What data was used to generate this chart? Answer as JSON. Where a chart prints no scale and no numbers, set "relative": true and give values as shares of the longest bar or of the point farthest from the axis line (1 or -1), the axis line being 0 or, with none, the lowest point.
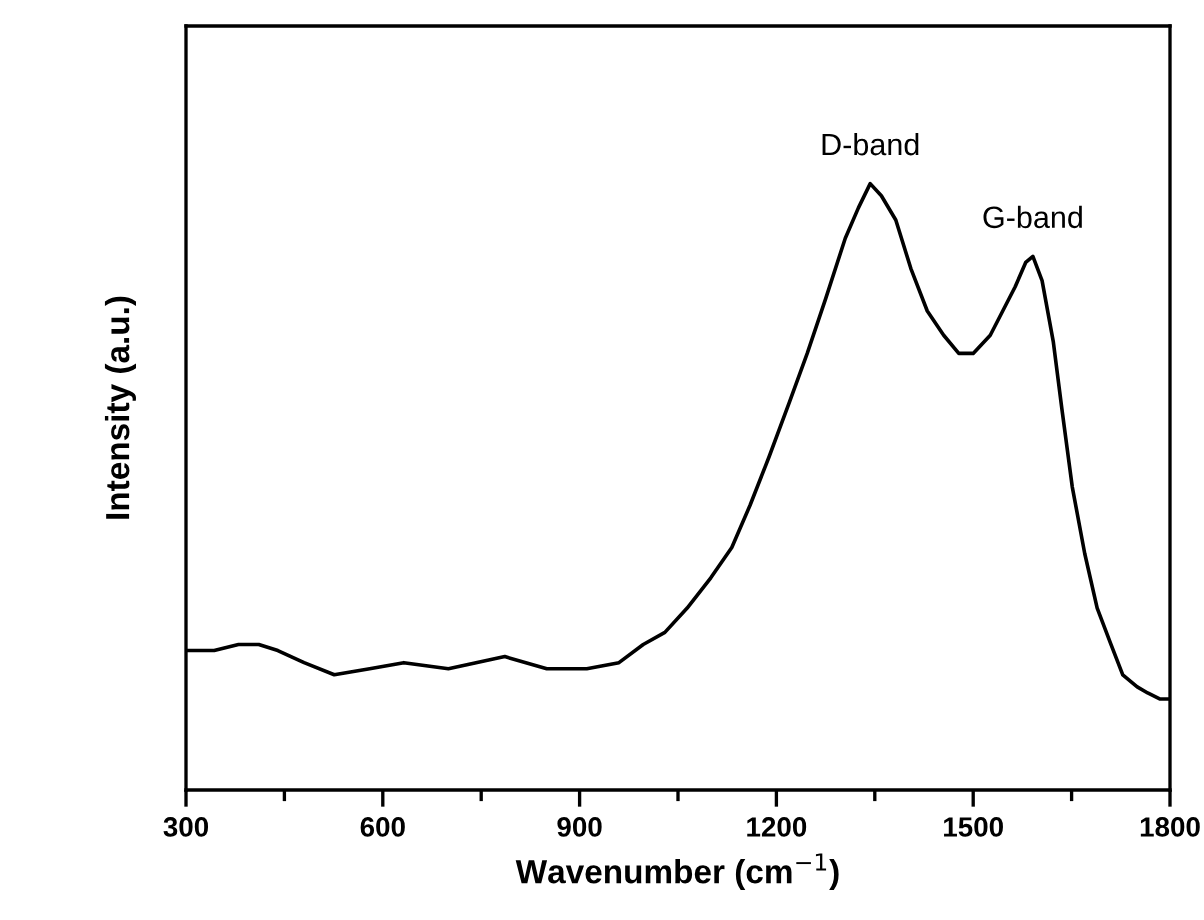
{
  "chart_data": {
    "type": "line",
    "relative": true,
    "xlabel": "Wavenumber (cm$^{−1}$)",
    "ylabel": "Intensity (a.u.)",
    "xlim": [
      300,
      1800
    ],
    "xticks": [
      300,
      600,
      900,
      1200,
      1500,
      1800
    ],
    "tick_labels": "x",
    "grid": false,
    "legend": false,
    "marker": "none",
    "line_style": "solid",
    "x": [
      300,
      343,
      380,
      411,
      440,
      480,
      526,
      580,
      632,
      700,
      786,
      850,
      911,
      960,
      997,
      1030,
      1064,
      1100,
      1132,
      1160,
      1189,
      1220,
      1247,
      1275,
      1305,
      1325,
      1343,
      1360,
      1382,
      1405,
      1430,
      1455,
      1478,
      1500,
      1526,
      1545,
      1564,
      1580,
      1591,
      1605,
      1622,
      1635,
      1651,
      1670,
      1689,
      1710,
      1728,
      1750,
      1766,
      1785,
      1800
    ],
    "series": [
      {
        "color": "#000000",
        "values": [
          0.23,
          0.23,
          0.24,
          0.24,
          0.23,
          0.21,
          0.19,
          0.2,
          0.21,
          0.2,
          0.22,
          0.2,
          0.2,
          0.21,
          0.24,
          0.26,
          0.3,
          0.35,
          0.4,
          0.47,
          0.55,
          0.64,
          0.72,
          0.81,
          0.91,
          0.96,
          1,
          0.98,
          0.94,
          0.86,
          0.79,
          0.75,
          0.72,
          0.72,
          0.75,
          0.79,
          0.83,
          0.87,
          0.88,
          0.84,
          0.74,
          0.63,
          0.5,
          0.39,
          0.3,
          0.24,
          0.19,
          0.17,
          0.16,
          0.15,
          0.15
        ]
      }
    ],
    "annotations": [
      {
        "text": "D-band",
        "x": 1343,
        "y": 1
      },
      {
        "text": "G-band",
        "x": 1591,
        "y": 0.88
      }
    ]
  }
}
